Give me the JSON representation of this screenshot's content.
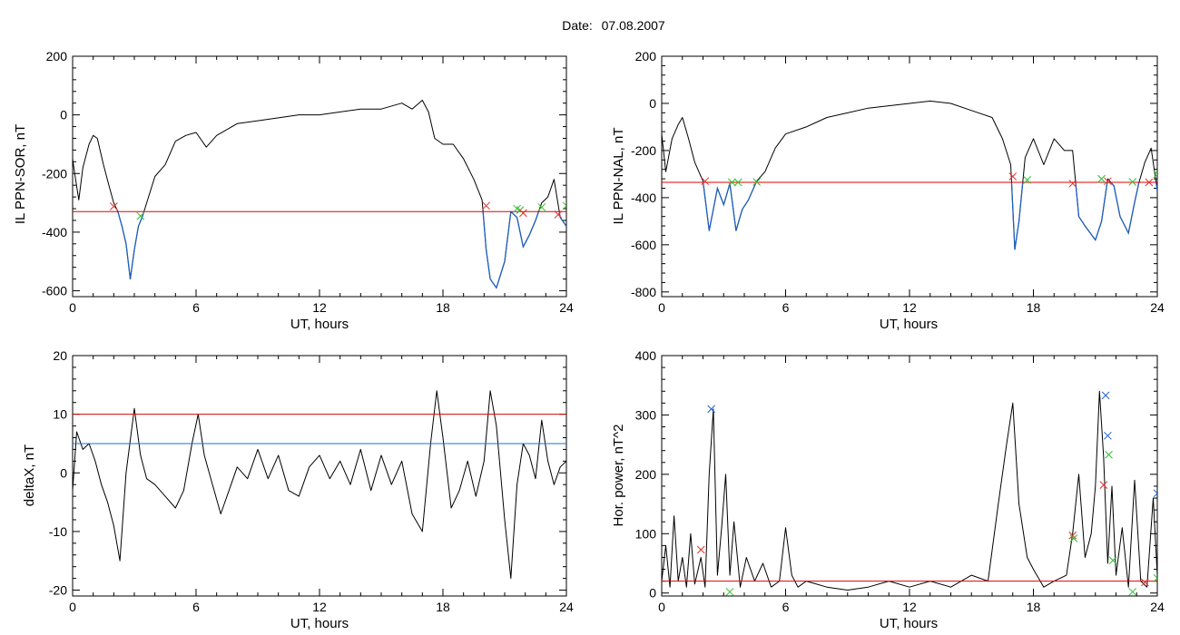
{
  "header": {
    "date_label": "Date:",
    "date_value": "07.08.2007"
  },
  "chart_data": [
    {
      "type": "line",
      "ylabel": "IL PPN-SOR, nT",
      "xlabel": "UT, hours",
      "xlim": [
        0,
        24
      ],
      "ylim": [
        -620,
        200
      ],
      "xticks": [
        0,
        6,
        12,
        18,
        24
      ],
      "yticks": [
        -600,
        -400,
        -200,
        0,
        200
      ],
      "grid": false,
      "series": [
        {
          "color": "#000000",
          "x": [
            0,
            0.1,
            0.3,
            0.5,
            0.8,
            1.0,
            1.2,
            1.5,
            1.8,
            2.0,
            2.2,
            2.4,
            2.6,
            2.8,
            3.0,
            3.2,
            3.4,
            3.6,
            4.0,
            4.5,
            5.0,
            5.5,
            6.0,
            6.5,
            7,
            8,
            9,
            10,
            11,
            12,
            13,
            14,
            15,
            16,
            16.5,
            17,
            17.3,
            17.6,
            18,
            18.5,
            19,
            19.5,
            19.9,
            20.1,
            20.3,
            20.6,
            21,
            21.3,
            21.6,
            21.9,
            22.2,
            22.5,
            22.8,
            23.1,
            23.4,
            23.7,
            24
          ],
          "y": [
            -150,
            -200,
            -290,
            -180,
            -100,
            -70,
            -80,
            -170,
            -250,
            -300,
            -330,
            -380,
            -440,
            -560,
            -460,
            -380,
            -345,
            -300,
            -210,
            -170,
            -90,
            -70,
            -60,
            -110,
            -70,
            -30,
            -20,
            -10,
            0,
            0,
            10,
            20,
            20,
            40,
            20,
            50,
            10,
            -80,
            -100,
            -100,
            -150,
            -220,
            -290,
            -460,
            -560,
            -590,
            -500,
            -330,
            -350,
            -450,
            -410,
            -360,
            -300,
            -280,
            -220,
            -350,
            -380
          ]
        }
      ],
      "threshold_lines": [
        {
          "y": -330,
          "color": "#e00000"
        }
      ],
      "highlight_color": "#1f5fc0",
      "markers": [
        {
          "x": 2.0,
          "y": -312,
          "color": "#e03030"
        },
        {
          "x": 3.3,
          "y": -345,
          "color": "#30c030"
        },
        {
          "x": 20.1,
          "y": -310,
          "color": "#e03030"
        },
        {
          "x": 21.6,
          "y": -320,
          "color": "#30c030"
        },
        {
          "x": 21.75,
          "y": -325,
          "color": "#30c030"
        },
        {
          "x": 21.9,
          "y": -335,
          "color": "#e03030"
        },
        {
          "x": 22.8,
          "y": -315,
          "color": "#30c030"
        },
        {
          "x": 23.6,
          "y": -340,
          "color": "#e03030"
        },
        {
          "x": 24.0,
          "y": -310,
          "color": "#30c030"
        }
      ]
    },
    {
      "type": "line",
      "ylabel": "IL PPN-NAL, nT",
      "xlabel": "UT, hours",
      "xlim": [
        0,
        24
      ],
      "ylim": [
        -820,
        200
      ],
      "xticks": [
        0,
        6,
        12,
        18,
        24
      ],
      "yticks": [
        -800,
        -600,
        -400,
        -200,
        0,
        200
      ],
      "grid": false,
      "series": [
        {
          "color": "#000000",
          "x": [
            0,
            0.2,
            0.5,
            0.8,
            1.0,
            1.3,
            1.6,
            2.0,
            2.3,
            2.7,
            3.0,
            3.3,
            3.6,
            3.9,
            4.2,
            4.6,
            5.0,
            5.5,
            6,
            7,
            8,
            9,
            10,
            11,
            12,
            13,
            14,
            15,
            16,
            16.5,
            16.9,
            17.1,
            17.3,
            17.6,
            18,
            18.5,
            19,
            19.5,
            19.9,
            20.2,
            20.5,
            21,
            21.3,
            21.6,
            21.9,
            22.2,
            22.6,
            22.9,
            23.1,
            23.4,
            23.7,
            24
          ],
          "y": [
            -130,
            -290,
            -150,
            -90,
            -60,
            -150,
            -250,
            -330,
            -540,
            -360,
            -430,
            -340,
            -540,
            -450,
            -410,
            -330,
            -290,
            -190,
            -130,
            -100,
            -60,
            -40,
            -20,
            -10,
            0,
            10,
            0,
            -30,
            -60,
            -150,
            -260,
            -620,
            -500,
            -230,
            -150,
            -260,
            -150,
            -200,
            -200,
            -480,
            -520,
            -580,
            -500,
            -320,
            -350,
            -480,
            -550,
            -420,
            -340,
            -250,
            -190,
            -370
          ]
        }
      ],
      "threshold_lines": [
        {
          "y": -335,
          "color": "#e00000"
        }
      ],
      "highlight_color": "#1f5fc0",
      "markers": [
        {
          "x": 2.1,
          "y": -330,
          "color": "#e03030"
        },
        {
          "x": 3.4,
          "y": -335,
          "color": "#30c030"
        },
        {
          "x": 3.7,
          "y": -335,
          "color": "#30c030"
        },
        {
          "x": 4.6,
          "y": -333,
          "color": "#30c030"
        },
        {
          "x": 17.0,
          "y": -310,
          "color": "#e03030"
        },
        {
          "x": 17.7,
          "y": -325,
          "color": "#30c030"
        },
        {
          "x": 19.9,
          "y": -340,
          "color": "#e03030"
        },
        {
          "x": 21.3,
          "y": -320,
          "color": "#30c030"
        },
        {
          "x": 21.6,
          "y": -330,
          "color": "#e03030"
        },
        {
          "x": 22.8,
          "y": -333,
          "color": "#30c030"
        },
        {
          "x": 23.6,
          "y": -335,
          "color": "#e03030"
        },
        {
          "x": 24.0,
          "y": -300,
          "color": "#30c030"
        }
      ]
    },
    {
      "type": "line",
      "ylabel": "deltaX, nT",
      "xlabel": "UT, hours",
      "xlim": [
        0,
        24
      ],
      "ylim": [
        -21,
        20
      ],
      "xticks": [
        0,
        6,
        12,
        18,
        24
      ],
      "yticks": [
        -20,
        -10,
        0,
        10,
        20
      ],
      "grid": false,
      "series": [
        {
          "color": "#000000",
          "x": [
            0,
            0.2,
            0.5,
            0.8,
            1.1,
            1.4,
            1.7,
            2.0,
            2.3,
            2.6,
            3.0,
            3.3,
            3.6,
            4.0,
            4.5,
            5.0,
            5.4,
            5.8,
            6.1,
            6.4,
            6.8,
            7.2,
            7.6,
            8,
            8.5,
            9,
            9.5,
            10,
            10.5,
            11,
            11.5,
            12,
            12.5,
            13,
            13.5,
            14,
            14.5,
            15,
            15.5,
            16,
            16.5,
            17,
            17.4,
            17.7,
            18,
            18.4,
            18.8,
            19.2,
            19.6,
            20,
            20.3,
            20.6,
            21,
            21.3,
            21.6,
            21.9,
            22.2,
            22.5,
            22.8,
            23.1,
            23.4,
            23.7,
            24
          ],
          "y": [
            -3,
            7,
            4,
            5,
            2,
            -2,
            -5,
            -9,
            -15,
            0,
            11,
            3,
            -1,
            -2,
            -4,
            -6,
            -3,
            5,
            10,
            3,
            -2,
            -7,
            -3,
            1,
            -1,
            4,
            -1,
            3,
            -3,
            -4,
            1,
            3,
            -1,
            2,
            -2,
            4,
            -3,
            3,
            -2,
            2,
            -7,
            -10,
            5,
            14,
            6,
            -6,
            -3,
            2,
            -4,
            2,
            14,
            8,
            -8,
            -18,
            -2,
            5,
            3,
            -1,
            9,
            2,
            -2,
            1,
            2
          ]
        }
      ],
      "threshold_lines": [
        {
          "y": 10,
          "color": "#e00000"
        },
        {
          "y": 5,
          "color": "#1f6fd0"
        }
      ],
      "markers": []
    },
    {
      "type": "line",
      "ylabel": "Hor. power, nT^2",
      "xlabel": "UT, hours",
      "xlim": [
        0,
        24
      ],
      "ylim": [
        -5,
        400
      ],
      "xticks": [
        0,
        6,
        12,
        18,
        24
      ],
      "yticks": [
        0,
        100,
        200,
        300,
        400
      ],
      "grid": false,
      "series": [
        {
          "color": "#000000",
          "x": [
            0,
            0.2,
            0.4,
            0.6,
            0.8,
            1.0,
            1.2,
            1.4,
            1.6,
            1.9,
            2.1,
            2.3,
            2.5,
            2.7,
            2.9,
            3.1,
            3.3,
            3.5,
            3.8,
            4.1,
            4.5,
            4.9,
            5.3,
            5.7,
            6.0,
            6.3,
            6.6,
            7,
            8,
            9,
            10,
            11,
            12,
            13,
            14,
            15,
            15.8,
            16.3,
            16.7,
            17.0,
            17.3,
            17.7,
            18.0,
            18.5,
            19,
            19.6,
            19.9,
            20.2,
            20.5,
            20.8,
            21,
            21.2,
            21.4,
            21.6,
            21.8,
            22,
            22.3,
            22.6,
            22.9,
            23.2,
            23.5,
            23.8,
            24
          ],
          "y": [
            20,
            80,
            10,
            130,
            20,
            60,
            10,
            100,
            15,
            60,
            10,
            200,
            310,
            30,
            110,
            200,
            30,
            120,
            10,
            60,
            20,
            50,
            10,
            20,
            110,
            30,
            10,
            20,
            10,
            5,
            10,
            20,
            10,
            20,
            10,
            30,
            20,
            150,
            250,
            320,
            150,
            60,
            40,
            10,
            20,
            30,
            100,
            200,
            60,
            100,
            180,
            340,
            230,
            50,
            180,
            30,
            110,
            10,
            190,
            20,
            10,
            160,
            30
          ]
        }
      ],
      "threshold_lines": [
        {
          "y": 20,
          "color": "#e00000"
        }
      ],
      "markers": [
        {
          "x": 2.4,
          "y": 310,
          "color": "#2060d0"
        },
        {
          "x": 1.9,
          "y": 73,
          "color": "#e03030"
        },
        {
          "x": 3.3,
          "y": 2,
          "color": "#30c030"
        },
        {
          "x": 19.9,
          "y": 97,
          "color": "#e03030"
        },
        {
          "x": 19.95,
          "y": 92,
          "color": "#30c030"
        },
        {
          "x": 21.5,
          "y": 333,
          "color": "#2060d0"
        },
        {
          "x": 21.6,
          "y": 265,
          "color": "#2060d0"
        },
        {
          "x": 21.65,
          "y": 233,
          "color": "#30c030"
        },
        {
          "x": 21.4,
          "y": 182,
          "color": "#e03030"
        },
        {
          "x": 21.85,
          "y": 55,
          "color": "#30c030"
        },
        {
          "x": 22.8,
          "y": 2,
          "color": "#30c030"
        },
        {
          "x": 23.4,
          "y": 18,
          "color": "#e03030"
        },
        {
          "x": 24.0,
          "y": 168,
          "color": "#2060d0"
        },
        {
          "x": 24.0,
          "y": 25,
          "color": "#30c030"
        }
      ]
    }
  ]
}
